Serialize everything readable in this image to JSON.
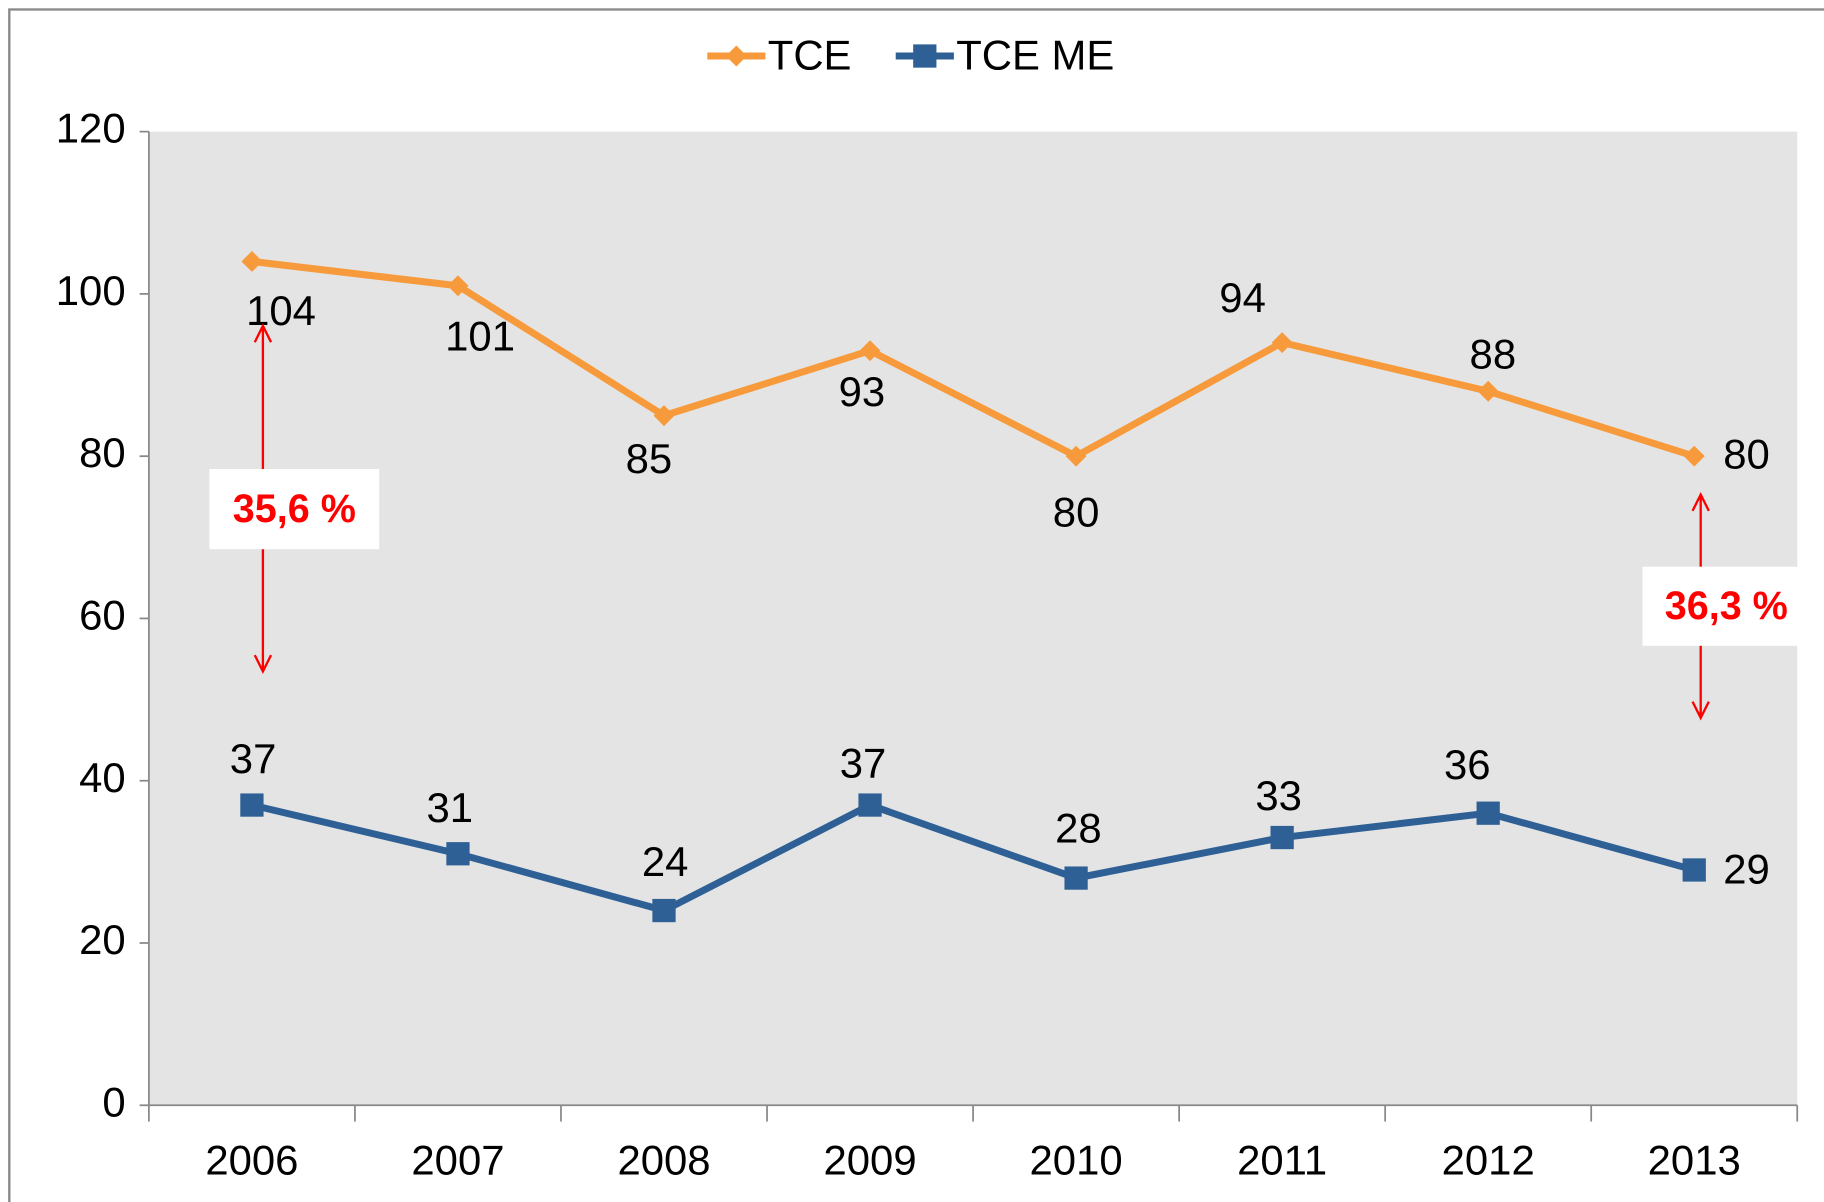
{
  "chart_data": {
    "type": "line",
    "categories": [
      "2006",
      "2007",
      "2008",
      "2009",
      "2010",
      "2011",
      "2012",
      "2013"
    ],
    "series": [
      {
        "name": "TCE",
        "color": "#f79a3b",
        "marker": "diamond",
        "values": [
          104,
          101,
          85,
          93,
          80,
          94,
          88,
          80
        ]
      },
      {
        "name": "TCE ME",
        "color": "#2e6096",
        "marker": "square",
        "values": [
          37,
          31,
          24,
          37,
          28,
          33,
          36,
          29
        ]
      }
    ],
    "ylim": [
      0,
      120
    ],
    "yticks": [
      0,
      20,
      40,
      60,
      80,
      100,
      120
    ],
    "legend": "top",
    "annotations": [
      {
        "text": "35,6 %",
        "color": "#ff0000"
      },
      {
        "text": "36,3 %",
        "color": "#ff0000"
      }
    ]
  }
}
